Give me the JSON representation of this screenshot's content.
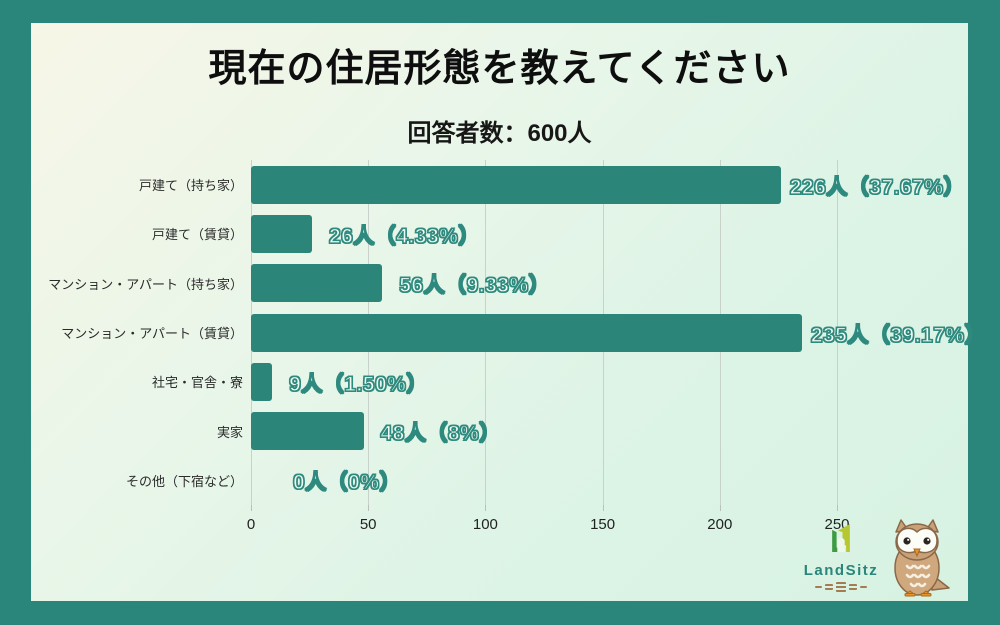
{
  "title": "現在の住居形態を教えてください",
  "subtitle": "回答者数：600人",
  "chart_data": {
    "type": "bar",
    "orientation": "horizontal",
    "title": "現在の住居形態を教えてください",
    "subtitle": "回答者数：600人",
    "categories": [
      "戸建て（持ち家）",
      "戸建て（賃貸）",
      "マンション・アパート（持ち家）",
      "マンション・アパート（賃貸）",
      "社宅・官舎・寮",
      "実家",
      "その他（下宿など）"
    ],
    "values": [
      226,
      26,
      56,
      235,
      9,
      48,
      0
    ],
    "value_labels": [
      "226人（37.67%）",
      "26人（4.33%）",
      "56人（9.33%）",
      "235人（39.17%）",
      "9人（1.50%）",
      "48人（8%）",
      "0人（0%）"
    ],
    "xticks": [
      0,
      50,
      100,
      150,
      200,
      250
    ],
    "xlim": [
      0,
      250
    ],
    "grid": true,
    "legend": false,
    "bar_color": "#2b8579",
    "value_label_color": "#2e8a7e",
    "gridline_color": "#c9d2ca",
    "frame_color": "#2a857a"
  },
  "branding": {
    "name": "LandSitz",
    "logo": "house-icon",
    "mascot": "owl-mascot",
    "text_color": "#2a857a"
  }
}
